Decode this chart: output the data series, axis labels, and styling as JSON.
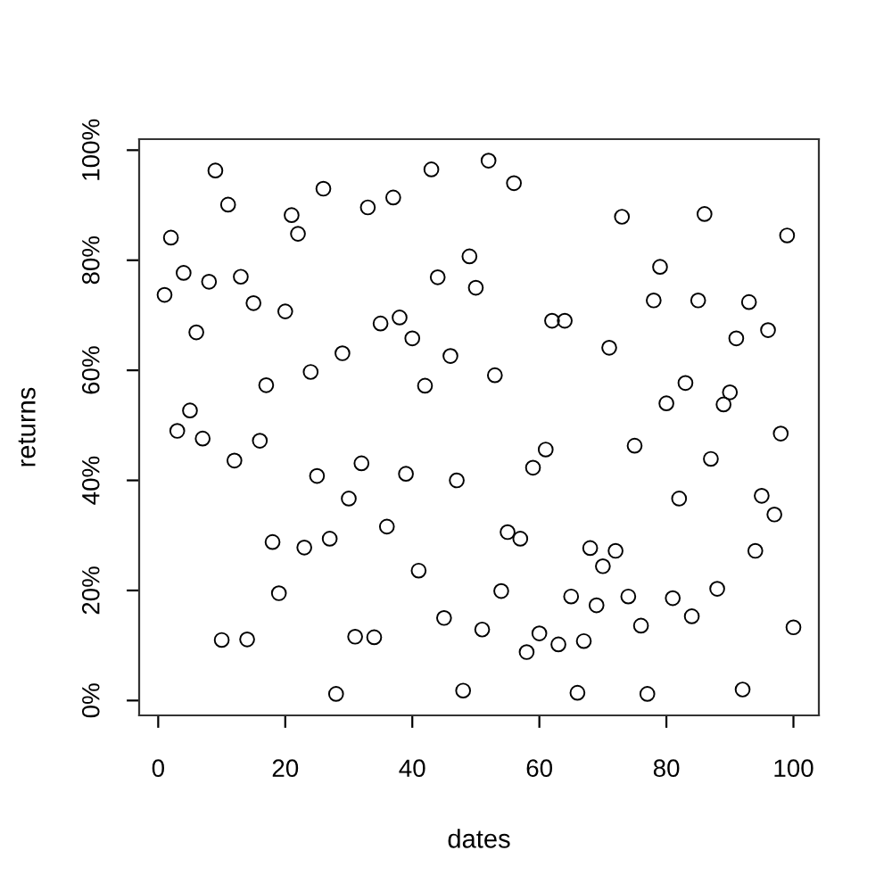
{
  "chart_data": {
    "type": "scatter",
    "xlabel": "dates",
    "ylabel": "returns",
    "color": "#000000",
    "marker": "circle",
    "x": [
      1,
      2,
      3,
      4,
      5,
      6,
      7,
      8,
      9,
      10,
      11,
      12,
      13,
      14,
      15,
      16,
      17,
      18,
      19,
      20,
      21,
      22,
      23,
      24,
      25,
      26,
      27,
      28,
      29,
      30,
      31,
      32,
      33,
      34,
      35,
      36,
      37,
      38,
      39,
      40,
      41,
      42,
      43,
      44,
      45,
      46,
      47,
      48,
      49,
      50,
      51,
      52,
      53,
      54,
      55,
      56,
      57,
      58,
      59,
      60,
      61,
      62,
      63,
      64,
      65,
      66,
      67,
      68,
      69,
      70,
      71,
      72,
      73,
      74,
      75,
      76,
      77,
      78,
      79,
      80,
      81,
      82,
      83,
      84,
      85,
      86,
      87,
      88,
      89,
      90,
      91,
      92,
      93,
      94,
      95,
      96,
      97,
      98,
      99,
      100
    ],
    "values": [
      73.7,
      84.1,
      49.0,
      77.7,
      52.7,
      66.9,
      47.6,
      76.1,
      96.3,
      11.0,
      90.1,
      43.6,
      77.0,
      11.1,
      72.2,
      47.2,
      57.3,
      28.8,
      19.5,
      70.7,
      88.2,
      84.8,
      27.8,
      59.7,
      40.8,
      93.0,
      29.4,
      1.2,
      63.1,
      36.7,
      11.6,
      43.1,
      89.6,
      11.5,
      68.5,
      31.6,
      91.4,
      69.6,
      41.2,
      65.8,
      23.6,
      57.2,
      96.5,
      76.9,
      15.0,
      62.6,
      40.0,
      1.8,
      80.7,
      75.0,
      12.9,
      98.1,
      59.1,
      19.9,
      30.6,
      94.0,
      29.4,
      8.8,
      42.3,
      12.2,
      45.6,
      69.0,
      10.2,
      69.0,
      18.9,
      1.4,
      10.8,
      27.7,
      17.3,
      24.4,
      64.1,
      27.2,
      87.9,
      18.9,
      46.3,
      13.6,
      1.2,
      72.7,
      78.8,
      54.0,
      18.6,
      36.7,
      57.7,
      15.3,
      72.7,
      88.4,
      43.9,
      20.3,
      53.8,
      56.0,
      65.8,
      2.0,
      72.4,
      27.2,
      37.2,
      67.3,
      33.8,
      48.5,
      84.5,
      13.3
    ],
    "xlim": [
      -3,
      104
    ],
    "ylim": [
      -2.7,
      102.0
    ],
    "xticks": [
      0,
      20,
      40,
      60,
      80,
      100
    ],
    "yticks": [
      {
        "value": 0,
        "label": "0%"
      },
      {
        "value": 20,
        "label": "20%"
      },
      {
        "value": 40,
        "label": "40%"
      },
      {
        "value": 60,
        "label": "60%"
      },
      {
        "value": 80,
        "label": "80%"
      },
      {
        "value": 100,
        "label": "100%"
      }
    ]
  }
}
